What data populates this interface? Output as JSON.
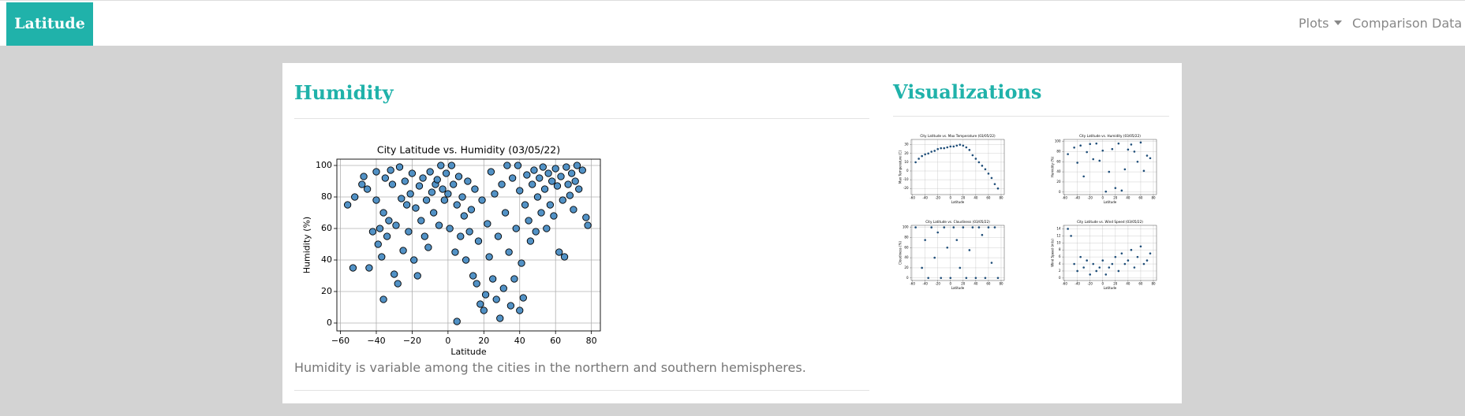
{
  "page": {
    "brand": "Latitude",
    "links": [
      "Plots",
      "Comparison",
      "Data"
    ],
    "heading": "Humidity",
    "caption": "Humidity is variable among the cities in the northern and southern hemispheres.",
    "side_heading": "Visualizations"
  },
  "chart_data": [
    {
      "type": "scatter",
      "title": "City Latitude vs. Humidity (03/05/22)",
      "xlabel": "Latitude",
      "ylabel": "Humidity (%)",
      "color": "#3f86c0",
      "grid": true,
      "xlim": [
        -62,
        85
      ],
      "ylim": [
        -5,
        104
      ],
      "xticks": [
        {
          "value": -60,
          "label": "−60"
        },
        {
          "value": -40,
          "label": "−40"
        },
        {
          "value": -20,
          "label": "−20"
        },
        0,
        20,
        40,
        60,
        80
      ],
      "yticks": [
        0,
        20,
        40,
        60,
        80,
        100
      ],
      "x": [
        -56,
        -53,
        -52,
        -48,
        -47,
        -45,
        -44,
        -42,
        -40,
        -40,
        -39,
        -38,
        -37,
        -36,
        -36,
        -35,
        -34,
        -33,
        -32,
        -31,
        -30,
        -29,
        -28,
        -27,
        -26,
        -25,
        -24,
        -23,
        -22,
        -21,
        -20,
        -19,
        -18,
        -17,
        -16,
        -15,
        -14,
        -13,
        -12,
        -11,
        -10,
        -9,
        -8,
        -7,
        -6,
        -5,
        -4,
        -3,
        -2,
        -1,
        0,
        1,
        2,
        3,
        4,
        5,
        5,
        6,
        7,
        8,
        9,
        10,
        11,
        12,
        13,
        14,
        15,
        16,
        17,
        18,
        19,
        20,
        21,
        22,
        23,
        24,
        25,
        26,
        27,
        28,
        29,
        30,
        31,
        32,
        33,
        34,
        35,
        36,
        37,
        38,
        39,
        40,
        40,
        41,
        42,
        43,
        44,
        45,
        46,
        47,
        48,
        49,
        50,
        51,
        52,
        53,
        54,
        55,
        56,
        57,
        58,
        59,
        60,
        61,
        62,
        63,
        64,
        65,
        66,
        67,
        68,
        69,
        70,
        71,
        72,
        73,
        75,
        77,
        78
      ],
      "y": [
        75,
        35,
        80,
        88,
        93,
        85,
        35,
        58,
        96,
        78,
        50,
        60,
        42,
        15,
        70,
        92,
        55,
        65,
        97,
        88,
        31,
        62,
        25,
        99,
        79,
        46,
        90,
        75,
        58,
        82,
        95,
        40,
        73,
        30,
        87,
        65,
        92,
        55,
        78,
        48,
        96,
        83,
        70,
        88,
        91,
        62,
        100,
        85,
        78,
        95,
        82,
        60,
        100,
        88,
        45,
        1,
        75,
        93,
        55,
        80,
        68,
        40,
        90,
        58,
        72,
        30,
        85,
        25,
        52,
        12,
        78,
        8,
        18,
        63,
        42,
        96,
        28,
        82,
        15,
        55,
        3,
        88,
        22,
        70,
        100,
        45,
        11,
        92,
        28,
        60,
        100,
        8,
        84,
        38,
        16,
        75,
        94,
        65,
        52,
        88,
        97,
        58,
        80,
        92,
        70,
        99,
        85,
        60,
        95,
        75,
        90,
        68,
        98,
        87,
        45,
        93,
        78,
        42,
        99,
        88,
        81,
        95,
        72,
        90,
        100,
        85,
        97,
        67,
        62
      ]
    },
    {
      "type": "scatter",
      "title": "City Latitude vs. Max Temperature (03/05/22)",
      "xlabel": "Latitude",
      "ylabel": "Max Temperature (C)",
      "color": "#1f4e79",
      "grid": true,
      "xlim": [
        -62,
        85
      ],
      "ylim": [
        -27,
        36
      ],
      "xticks": [
        -60,
        -40,
        -20,
        0,
        20,
        40,
        60,
        80
      ],
      "yticks": [
        -20,
        -10,
        0,
        10,
        20,
        30
      ],
      "x": [
        -55,
        -50,
        -45,
        -40,
        -35,
        -30,
        -25,
        -20,
        -15,
        -10,
        -5,
        0,
        5,
        10,
        15,
        20,
        25,
        30,
        35,
        40,
        45,
        50,
        55,
        60,
        65,
        70,
        75
      ],
      "y": [
        10,
        14,
        17,
        19,
        20,
        22,
        23,
        25,
        26,
        26,
        27,
        28,
        28,
        29,
        30,
        29,
        27,
        24,
        18,
        14,
        10,
        6,
        2,
        -3,
        -8,
        -15,
        -20
      ]
    },
    {
      "type": "scatter",
      "title": "City Latitude vs. Humidity (03/05/22)",
      "xlabel": "Latitude",
      "ylabel": "Humidity (%)",
      "color": "#1f4e79",
      "grid": true,
      "xlim": [
        -62,
        85
      ],
      "ylim": [
        -5,
        104
      ],
      "xticks": [
        -60,
        -40,
        -20,
        0,
        20,
        40,
        60,
        80
      ],
      "yticks": [
        0,
        20,
        40,
        60,
        80,
        100
      ],
      "x": [
        -55,
        -45,
        -40,
        -35,
        -30,
        -25,
        -20,
        -15,
        -10,
        -5,
        0,
        5,
        10,
        15,
        20,
        25,
        30,
        35,
        40,
        45,
        50,
        55,
        60,
        65,
        70,
        75
      ],
      "y": [
        75,
        88,
        58,
        92,
        31,
        79,
        95,
        65,
        96,
        62,
        82,
        1,
        40,
        85,
        8,
        96,
        3,
        45,
        84,
        94,
        80,
        60,
        98,
        42,
        72,
        67
      ]
    },
    {
      "type": "scatter",
      "title": "City Latitude vs. Cloudiness (03/05/22)",
      "xlabel": "Latitude",
      "ylabel": "Cloudiness (%)",
      "color": "#1f4e79",
      "grid": true,
      "xlim": [
        -62,
        85
      ],
      "ylim": [
        -5,
        104
      ],
      "xticks": [
        -60,
        -40,
        -20,
        0,
        20,
        40,
        60,
        80
      ],
      "yticks": [
        0,
        20,
        40,
        60,
        80,
        100
      ],
      "x": [
        -55,
        -45,
        -40,
        -35,
        -30,
        -25,
        -20,
        -15,
        -10,
        -5,
        0,
        5,
        10,
        15,
        20,
        25,
        30,
        35,
        40,
        45,
        50,
        55,
        60,
        65,
        70,
        75
      ],
      "y": [
        100,
        20,
        75,
        0,
        100,
        40,
        90,
        0,
        100,
        60,
        0,
        100,
        75,
        20,
        100,
        0,
        55,
        100,
        0,
        100,
        85,
        0,
        100,
        30,
        100,
        0
      ]
    },
    {
      "type": "scatter",
      "title": "City Latitude vs. Wind Speed (03/05/22)",
      "xlabel": "Latitude",
      "ylabel": "Wind Speed (m/s)",
      "color": "#1f4e79",
      "grid": true,
      "xlim": [
        -62,
        85
      ],
      "ylim": [
        -0.7,
        15
      ],
      "xticks": [
        -60,
        -40,
        -20,
        0,
        20,
        40,
        60,
        80
      ],
      "yticks": [
        0,
        2,
        4,
        6,
        8,
        10,
        12,
        14
      ],
      "x": [
        -55,
        -50,
        -45,
        -40,
        -35,
        -30,
        -25,
        -20,
        -15,
        -10,
        -5,
        0,
        5,
        10,
        15,
        20,
        25,
        30,
        35,
        40,
        45,
        50,
        55,
        60,
        65,
        70,
        75
      ],
      "y": [
        14,
        12,
        4,
        2,
        6,
        3,
        5,
        1,
        4,
        2,
        3,
        5,
        1,
        3,
        4,
        6,
        2,
        7,
        4,
        5,
        8,
        3,
        6,
        9,
        4,
        5,
        7
      ]
    }
  ]
}
